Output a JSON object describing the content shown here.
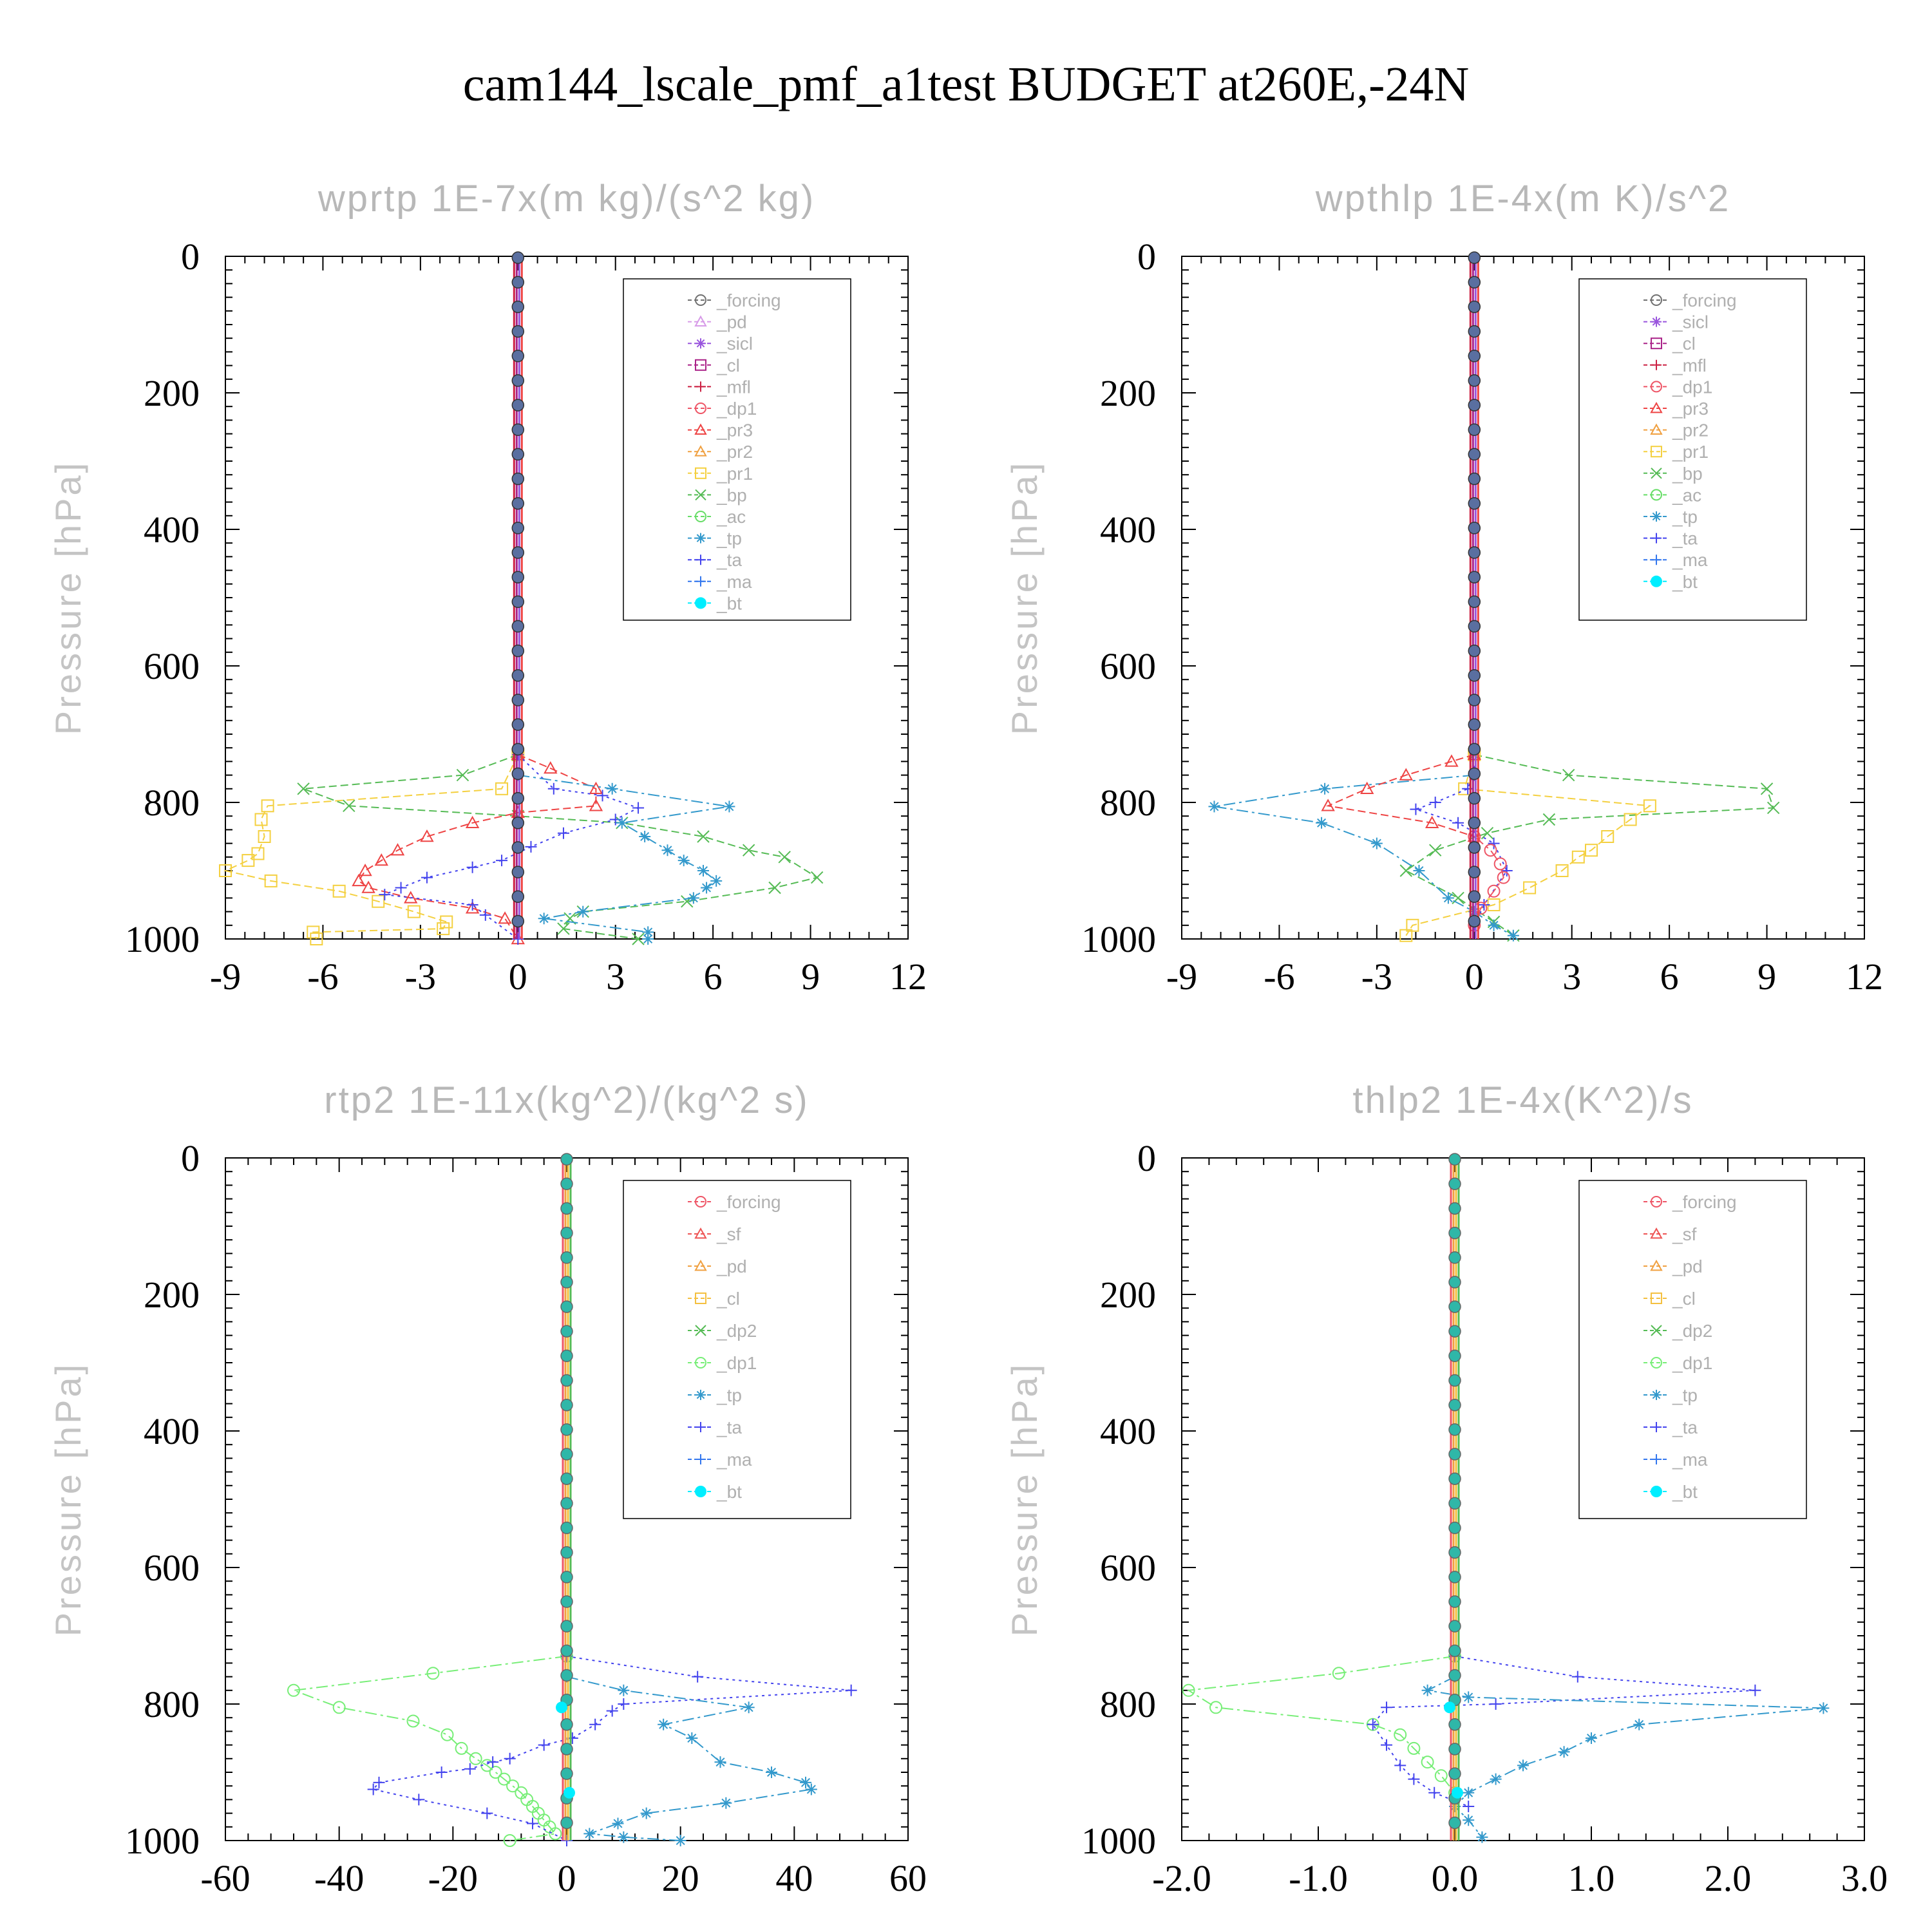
{
  "figure_title": "cam144_lscale_pmf_a1test  BUDGET at260E,-24N",
  "chart_data": [
    {
      "type": "line",
      "title": "wprtp  1E-7x(m kg)/(s^2 kg)",
      "ylabel": "Pressure [hPa]",
      "xlim": [
        -9,
        12
      ],
      "ylim": [
        1000,
        0
      ],
      "xticks": [
        "-9",
        "-6",
        "-3",
        "0",
        "3",
        "6",
        "9",
        "12"
      ],
      "yticks": [
        "0",
        "200",
        "400",
        "600",
        "800",
        "1000"
      ],
      "legend": [
        "_forcing",
        "_pd",
        "_sicl",
        "_cl",
        "_mfl",
        "_dp1",
        "_pr3",
        "_pr2",
        "_pr1",
        "_bp",
        "_ac",
        "_tp",
        "_ta",
        "_ma",
        "_bt"
      ],
      "series": [
        {
          "name": "_pr1",
          "x": [
            0,
            -0.5,
            -7.7,
            -7.9,
            -7.8,
            -8.0,
            -8.3,
            -9.0,
            -7.6,
            -5.5,
            -4.3,
            -3.2,
            -2.2,
            -2.3,
            -6.3,
            -6.2
          ],
          "y": [
            730,
            780,
            805,
            825,
            850,
            875,
            885,
            900,
            915,
            930,
            945,
            960,
            975,
            985,
            990,
            1000
          ]
        },
        {
          "name": "_bp",
          "x": [
            0,
            -1.7,
            -6.6,
            -5.2,
            0,
            3.2,
            5.7,
            7.1,
            8.2,
            9.2,
            7.9,
            5.2,
            2.0,
            1.6,
            1.4,
            3.7
          ],
          "y": [
            730,
            760,
            780,
            805,
            820,
            830,
            850,
            870,
            880,
            910,
            925,
            945,
            960,
            970,
            985,
            1000
          ]
        },
        {
          "name": "_pr3",
          "x": [
            0,
            1.0,
            2.4,
            2.4,
            0,
            -1.4,
            -2.8,
            -3.7,
            -4.2,
            -4.7,
            -4.9,
            -4.6,
            -3.3,
            -1.4,
            -0.4,
            0
          ],
          "y": [
            730,
            750,
            780,
            805,
            815,
            830,
            850,
            870,
            885,
            900,
            915,
            925,
            940,
            955,
            970,
            1000
          ]
        },
        {
          "name": "_ta",
          "x": [
            0,
            1.1,
            2.6,
            3.7,
            3.0,
            1.4,
            0.4,
            -0.5,
            -1.4,
            -2.8,
            -3.6,
            -4.1,
            -1.4,
            -1.0,
            0
          ],
          "y": [
            730,
            780,
            790,
            808,
            825,
            845,
            865,
            885,
            895,
            910,
            925,
            935,
            950,
            965,
            1000
          ]
        },
        {
          "name": "_tp",
          "x": [
            0,
            2.9,
            6.5,
            3.2,
            3.9,
            4.6,
            5.1,
            5.7,
            6.1,
            5.8,
            5.4,
            2.0,
            0.8,
            4.0,
            4.0
          ],
          "y": [
            760,
            780,
            806,
            830,
            850,
            870,
            885,
            900,
            915,
            925,
            940,
            960,
            970,
            990,
            1000
          ]
        }
      ]
    },
    {
      "type": "line",
      "title": "wpthlp  1E-4x(m K)/s^2",
      "ylabel": "Pressure [hPa]",
      "xlim": [
        -9,
        12
      ],
      "ylim": [
        1000,
        0
      ],
      "xticks": [
        "-9",
        "-6",
        "-3",
        "0",
        "3",
        "6",
        "9",
        "12"
      ],
      "yticks": [
        "0",
        "200",
        "400",
        "600",
        "800",
        "1000"
      ],
      "legend": [
        "_forcing",
        "_sicl",
        "_cl",
        "_mfl",
        "_dp1",
        "_pr3",
        "_pr2",
        "_pr1",
        "_bp",
        "_ac",
        "_tp",
        "_ta",
        "_ma",
        "_bt"
      ],
      "series": [
        {
          "name": "_bp",
          "x": [
            0,
            2.9,
            9.0,
            9.2,
            2.3,
            0.4,
            -1.2,
            -2.1,
            -0.5,
            0.6,
            1.2
          ],
          "y": [
            730,
            760,
            780,
            808,
            825,
            845,
            870,
            900,
            940,
            975,
            995
          ]
        },
        {
          "name": "_pr1",
          "x": [
            0,
            -0.3,
            5.4,
            4.8,
            4.1,
            3.6,
            3.2,
            2.7,
            1.7,
            0.6,
            -1.9,
            -2.1
          ],
          "y": [
            730,
            780,
            805,
            825,
            850,
            870,
            880,
            900,
            925,
            950,
            980,
            995
          ]
        },
        {
          "name": "_tp",
          "x": [
            0,
            -4.6,
            -8.0,
            -4.7,
            -3.0,
            -1.7,
            -0.8,
            0,
            0.6,
            1.2
          ],
          "y": [
            760,
            780,
            806,
            830,
            860,
            900,
            940,
            960,
            980,
            995
          ]
        },
        {
          "name": "_pr3",
          "x": [
            0,
            -0.7,
            -2.1,
            -3.3,
            -4.5,
            -1.3,
            0
          ],
          "y": [
            730,
            740,
            760,
            780,
            805,
            830,
            850
          ]
        },
        {
          "name": "_ta",
          "x": [
            0,
            -0.2,
            -1.2,
            -1.8,
            -0.5,
            0.6,
            1.0,
            0.3,
            0
          ],
          "y": [
            755,
            780,
            800,
            810,
            830,
            860,
            900,
            950,
            980
          ]
        },
        {
          "name": "_dp1",
          "x": [
            0,
            0.5,
            0.8,
            0.9,
            0.6,
            0.2,
            0
          ],
          "y": [
            850,
            870,
            890,
            910,
            930,
            955,
            980
          ]
        }
      ]
    },
    {
      "type": "line",
      "title": "rtp2  1E-11x(kg^2)/(kg^2 s)",
      "ylabel": "Pressure [hPa]",
      "xlim": [
        -60,
        60
      ],
      "ylim": [
        1000,
        0
      ],
      "xticks": [
        "-60",
        "-40",
        "-20",
        "0",
        "20",
        "40",
        "60"
      ],
      "yticks": [
        "0",
        "200",
        "400",
        "600",
        "800",
        "1000"
      ],
      "legend": [
        "_forcing",
        "_sf",
        "_pd",
        "_cl",
        "_dp2",
        "_dp1",
        "_tp",
        "_ta",
        "_ma",
        "_bt"
      ],
      "series": [
        {
          "name": "_dp1",
          "x": [
            0,
            -23.5,
            -48,
            -40,
            -27,
            -21,
            -18.5,
            -16,
            -14,
            -12.5,
            -11,
            -9.5,
            -8,
            -7,
            -6,
            -5,
            -4,
            -3,
            -2,
            -10
          ],
          "y": [
            730,
            755,
            780,
            805,
            825,
            845,
            865,
            880,
            890,
            900,
            910,
            920,
            930,
            940,
            950,
            960,
            970,
            980,
            990,
            1000
          ]
        },
        {
          "name": "_ta",
          "x": [
            0,
            23,
            50,
            10,
            8,
            5,
            1,
            -4,
            -10,
            -13,
            -17,
            -22,
            -33,
            -34,
            -26,
            -14,
            -6,
            0
          ],
          "y": [
            730,
            760,
            780,
            800,
            810,
            830,
            850,
            860,
            880,
            885,
            895,
            900,
            915,
            925,
            940,
            960,
            975,
            1000
          ]
        },
        {
          "name": "_tp",
          "x": [
            0,
            10,
            32,
            17,
            22,
            27,
            36,
            42,
            43,
            28,
            14,
            9,
            4,
            10,
            20
          ],
          "y": [
            760,
            780,
            805,
            830,
            850,
            885,
            900,
            915,
            925,
            945,
            960,
            975,
            990,
            995,
            1000
          ]
        }
      ]
    },
    {
      "type": "line",
      "title": "thlp2  1E-4x(K^2)/s",
      "ylabel": "Pressure [hPa]",
      "xlim": [
        -2.0,
        3.0
      ],
      "ylim": [
        1000,
        0
      ],
      "xticks": [
        "-2.0",
        "-1.0",
        "0.0",
        "1.0",
        "2.0",
        "3.0"
      ],
      "yticks": [
        "0",
        "200",
        "400",
        "600",
        "800",
        "1000"
      ],
      "legend": [
        "_forcing",
        "_sf",
        "_pd",
        "_cl",
        "_dp2",
        "_dp1",
        "_tp",
        "_ta",
        "_ma",
        "_bt"
      ],
      "series": [
        {
          "name": "_dp1",
          "x": [
            0,
            -0.85,
            -1.95,
            -1.75,
            -0.6,
            -0.4,
            -0.3,
            -0.2,
            -0.1,
            0
          ],
          "y": [
            730,
            755,
            780,
            805,
            830,
            845,
            865,
            885,
            905,
            930
          ]
        },
        {
          "name": "_ta",
          "x": [
            0,
            0.9,
            2.2,
            0.3,
            -0.5,
            -0.6,
            -0.5,
            -0.4,
            -0.3,
            -0.15,
            0.1
          ],
          "y": [
            730,
            760,
            780,
            800,
            805,
            830,
            860,
            890,
            910,
            930,
            950
          ]
        },
        {
          "name": "_tp",
          "x": [
            0,
            -0.2,
            0.1,
            2.7,
            1.35,
            1.0,
            0.8,
            0.5,
            0.3,
            0.1,
            0,
            0.1,
            0.2
          ],
          "y": [
            760,
            780,
            790,
            806,
            830,
            850,
            870,
            890,
            910,
            930,
            950,
            970,
            995
          ]
        }
      ]
    }
  ],
  "colors": {
    "_forcing": "#707070",
    "_pd": "#d79be8",
    "_sicl": "#9955dd",
    "_cl": "#aa2288",
    "_mfl": "#cc2244",
    "_dp1": "#ee5566",
    "_pr3": "#ee4444",
    "_pr2": "#f0a040",
    "_pr1": "#f4d040",
    "_bp": "#55bb55",
    "_ac": "#66dd66",
    "_tp": "#3399cc",
    "_ta": "#4444ee",
    "_ma": "#3377ee",
    "_bt": "#00eeff",
    "_sf": "#ee5555",
    "_dp2": "#55bb55",
    "rtp2_forcing": "#ee5566",
    "rtp2_pd": "#f0a040",
    "rtp2_cl": "#f4c040",
    "rtp2_dp1": "#77ee77"
  }
}
